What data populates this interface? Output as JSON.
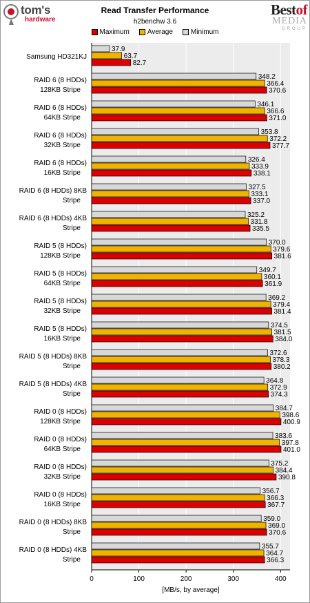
{
  "branding": {
    "left_logo_line1": "tom's",
    "left_logo_line2": "hardware",
    "right_logo_best": "Best",
    "right_logo_of": "of",
    "right_logo_media": "MEDIA",
    "right_logo_group": "GROUP"
  },
  "colors": {
    "maximum": "#dd0000",
    "average": "#f0b400",
    "minimum": "#d8d8d8",
    "plot_bg": "#ececec"
  },
  "chart_data": {
    "type": "bar",
    "orientation": "horizontal",
    "title": "Read Transfer Performance",
    "subtitle": "h2benchw 3.6",
    "xlabel": "[MB/s, by average]",
    "xlim": [
      0,
      420
    ],
    "xticks": [
      0,
      100,
      200,
      300,
      400
    ],
    "legend_position": "top",
    "categories": [
      [
        "Samsung HD321KJ"
      ],
      [
        "RAID 6 (8 HDDs)",
        "128KB Stripe"
      ],
      [
        "RAID 6 (8 HDDs)",
        "64KB Stripe"
      ],
      [
        "RAID 6 (8 HDDs)",
        "32KB Stripe"
      ],
      [
        "RAID 6 (8 HDDs)",
        "16KB Stripe"
      ],
      [
        "RAID 6 (8 HDDs) 8KB",
        "Stripe"
      ],
      [
        "RAID 6 (8 HDDs) 4KB",
        "Stripe"
      ],
      [
        "RAID 5 (8 HDDs)",
        "128KB Stripe"
      ],
      [
        "RAID 5 (8 HDDs)",
        "64KB Stripe"
      ],
      [
        "RAID 5 (8 HDDs)",
        "32KB Stripe"
      ],
      [
        "RAID 5 (8 HDDs)",
        "16KB Stripe"
      ],
      [
        "RAID 5 (8 HDDs) 8KB",
        "Stripe"
      ],
      [
        "RAID 5 (8 HDDs) 4KB",
        "Stripe"
      ],
      [
        "RAID 0 (8 HDDs)",
        "128KB Stripe"
      ],
      [
        "RAID 0 (8 HDDs)",
        "64KB Stripe"
      ],
      [
        "RAID 0 (8 HDDs)",
        "32KB Stripe"
      ],
      [
        "RAID 0 (8 HDDs)",
        "16KB Stripe"
      ],
      [
        "RAID 0 (8 HDDs) 8KB",
        "Stripe"
      ],
      [
        "RAID 0 (8 HDDs) 4KB",
        "Stripe"
      ]
    ],
    "series": [
      {
        "name": "Maximum",
        "values": [
          82.7,
          370.6,
          371.0,
          377.7,
          338.1,
          337.0,
          335.5,
          381.6,
          361.9,
          381.4,
          384.0,
          380.2,
          374.3,
          400.9,
          401.0,
          390.8,
          367.7,
          370.6,
          366.3
        ]
      },
      {
        "name": "Average",
        "values": [
          63.7,
          366.4,
          366.6,
          372.2,
          333.9,
          333.1,
          331.8,
          379.6,
          360.1,
          379.4,
          381.5,
          378.3,
          372.9,
          398.6,
          397.8,
          384.4,
          366.3,
          369.0,
          364.7
        ]
      },
      {
        "name": "Minimum",
        "values": [
          37.9,
          348.2,
          346.1,
          353.8,
          326.4,
          327.5,
          325.2,
          370.0,
          349.7,
          369.2,
          374.5,
          372.6,
          364.8,
          384.7,
          383.6,
          375.2,
          356.7,
          359.0,
          355.7
        ]
      }
    ]
  }
}
